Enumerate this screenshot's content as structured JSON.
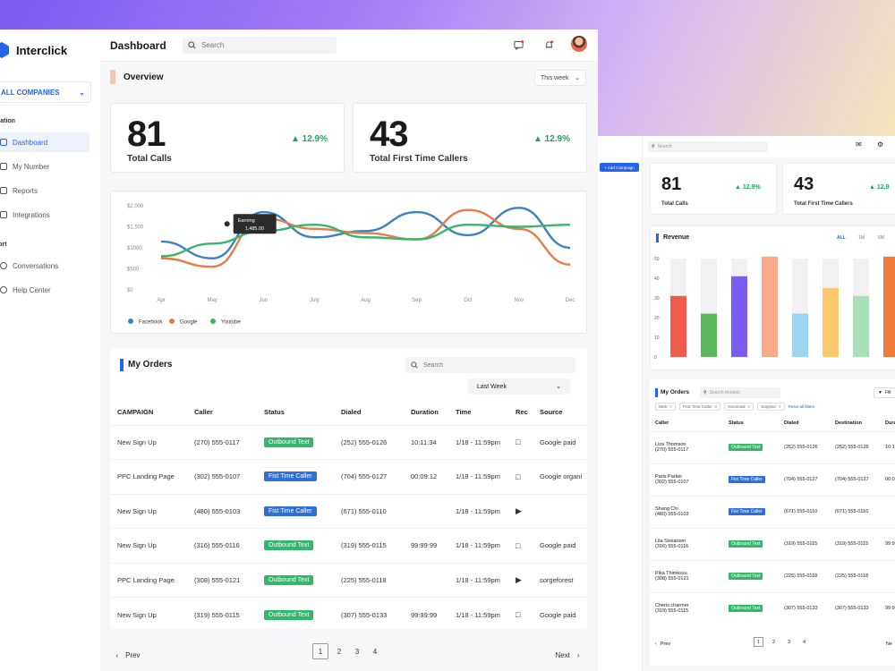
{
  "brand": {
    "name": "Interclick"
  },
  "sidebar": {
    "company_select": "ALL COMPANIES",
    "section_navigation": "igation",
    "section_support": "port",
    "nav_items": [
      {
        "label": "Dashboard",
        "icon": "dashboard-icon",
        "active": true
      },
      {
        "label": "My Number",
        "icon": "phone-icon",
        "active": false
      },
      {
        "label": "Reports",
        "icon": "reports-icon",
        "active": false
      },
      {
        "label": "Integrations",
        "icon": "integrations-icon",
        "active": false
      }
    ],
    "support_items": [
      {
        "label": "Conversations",
        "icon": "chat-icon"
      },
      {
        "label": "Help Center",
        "icon": "help-icon"
      }
    ]
  },
  "header": {
    "title": "Dashboard",
    "search_placeholder": "Search"
  },
  "overview": {
    "title": "Overview",
    "period": "This week",
    "stats": [
      {
        "value": "81",
        "label": "Total Calls",
        "change": "12.9%"
      },
      {
        "value": "43",
        "label": "Total First Time Callers",
        "change": "12.9%"
      }
    ]
  },
  "chart_data": {
    "type": "line",
    "categories": [
      "Apr",
      "May",
      "Jun",
      "July",
      "Aug",
      "Sep",
      "Oct",
      "Nov",
      "Dec"
    ],
    "ytick_labels": [
      "$0",
      "$500",
      "$1000",
      "$1,500",
      "$2,000"
    ],
    "ylim": [
      0,
      2000
    ],
    "series": [
      {
        "name": "Facebook",
        "color": "#3b82c4",
        "values": [
          1150,
          750,
          1850,
          1250,
          1400,
          1850,
          1300,
          1950,
          1000
        ]
      },
      {
        "name": "Google",
        "color": "#e57c4a",
        "values": [
          750,
          550,
          1700,
          1450,
          1350,
          1200,
          1900,
          1450,
          600
        ]
      },
      {
        "name": "Youtube",
        "color": "#3db36b",
        "values": [
          800,
          1100,
          1400,
          1550,
          1250,
          1200,
          1550,
          1500,
          1550
        ]
      }
    ],
    "tooltip": {
      "label": "Earning",
      "value": "1,485.00"
    }
  },
  "orders": {
    "title": "My Orders",
    "search_placeholder": "Search",
    "filter": "Last Week",
    "columns": [
      "CAMPAIGN",
      "Caller",
      "Status",
      "Dialed",
      "Duration",
      "Time",
      "Rec",
      "Source"
    ],
    "rows": [
      {
        "campaign": "New Sign Up",
        "caller": "(270) 555-0117",
        "status": "Outbound Text",
        "status_color": "green",
        "dialed": "(252) 555-0126",
        "duration": "10:11:34",
        "time": "1/18 - 11:59pm",
        "rec": "comment",
        "source": "Google paid"
      },
      {
        "campaign": "PPC Landing Page",
        "caller": "(302) 555-0107",
        "status": "Fist Time Caller",
        "status_color": "blue",
        "dialed": "(704) 555-0127",
        "duration": "00:09:12",
        "time": "1/18 - 11:59pm",
        "rec": "comment",
        "source": "Google organi"
      },
      {
        "campaign": "New Sign Up",
        "caller": "(480) 555-0103",
        "status": "Fist Time Caller",
        "status_color": "blue",
        "dialed": "(671) 555-0110",
        "duration": "",
        "time": "1/18 - 11:59pm",
        "rec": "play",
        "source": ""
      },
      {
        "campaign": "New Sign Up",
        "caller": "(316) 555-0116",
        "status": "Outbound Text",
        "status_color": "green",
        "dialed": "(319) 555-0115",
        "duration": "99:99:99",
        "time": "1/18 - 11:59pm",
        "rec": "comment",
        "source": "Google paid"
      },
      {
        "campaign": "PPC Landing Page",
        "caller": "(308) 555-0121",
        "status": "Outbound Text",
        "status_color": "green",
        "dialed": "(225) 555-0118",
        "duration": "",
        "time": "1/18 - 11:59pm",
        "rec": "play",
        "source": "sorgeforest"
      },
      {
        "campaign": "New Sign Up",
        "caller": "(319) 555-0115",
        "status": "Outbound Text",
        "status_color": "green",
        "dialed": "(307) 555-0133",
        "duration": "99:99:99",
        "time": "1/18 - 11:59pm",
        "rec": "comment",
        "source": "Google paid"
      }
    ]
  },
  "pagination": {
    "prev": "Prev",
    "next": "Next",
    "pages": [
      "1",
      "2",
      "3",
      "4"
    ],
    "current": "1"
  },
  "preview": {
    "add_campaign": "+ Add Campaign",
    "search_placeholder": "Search",
    "stats": [
      {
        "value": "81",
        "label": "Total Calls",
        "change": "12.9%"
      },
      {
        "value": "43",
        "label": "Total First Time Callers",
        "change": "12.9"
      }
    ],
    "revenue": {
      "title": "Revenue",
      "tabs": [
        "ALL",
        "1M",
        "6M"
      ],
      "y_ticks": [
        "0",
        "10",
        "20",
        "30",
        "40",
        "50"
      ],
      "bars": [
        {
          "value": 31,
          "color": "#f05a4a"
        },
        {
          "value": 22,
          "color": "#5cb85c"
        },
        {
          "value": 41,
          "color": "#7b5cf0"
        },
        {
          "value": 51,
          "color": "#f8a98a"
        },
        {
          "value": 22,
          "color": "#9ad5f2"
        },
        {
          "value": 35,
          "color": "#fbc96b"
        },
        {
          "value": 31,
          "color": "#a5e0b8"
        },
        {
          "value": 51,
          "color": "#f07a3a"
        }
      ]
    },
    "orders": {
      "title": "My Orders",
      "search_placeholder": "Search product",
      "filter_label": "Filt",
      "chips": [
        "Web",
        "First Time Caller",
        "Voicemail",
        "Surprise"
      ],
      "clear_link": "Reset all filters",
      "columns": [
        "Caller",
        "Status",
        "Dialed",
        "Destination",
        "Dura"
      ],
      "rows": [
        {
          "name": "Liza Thomson",
          "phone": "(270) 555-0117",
          "status": "Outbound Text",
          "color": "green",
          "dialed": "(252) 555-0126",
          "dest": "(252) 555-0126",
          "dur": "10:1"
        },
        {
          "name": "Paris Parker",
          "phone": "(302) 555-0107",
          "status": "Fist Time Caller",
          "color": "blue",
          "dialed": "(704) 555-0127",
          "dest": "(704) 555-0127",
          "dur": "00:0"
        },
        {
          "name": "Shang Chi",
          "phone": "(480) 555-0103",
          "status": "Fist Time Caller",
          "color": "blue",
          "dialed": "(671) 555-0110",
          "dest": "(671) 555-0110",
          "dur": ""
        },
        {
          "name": "Lila Sissarson",
          "phone": "(316) 555-0116",
          "status": "Outbound Text",
          "color": "green",
          "dialed": "(319) 555-0115",
          "dest": "(319) 555-0115",
          "dur": "99:9"
        },
        {
          "name": "Pika Thimkssu",
          "phone": "(308) 555-0121",
          "status": "Outbound Text",
          "color": "green",
          "dialed": "(225) 555-0118",
          "dest": "(225) 555-0118",
          "dur": ""
        },
        {
          "name": "Cheris charmer",
          "phone": "(319) 555-0115",
          "status": "Outbound Text",
          "color": "green",
          "dialed": "(307) 555-0133",
          "dest": "(307) 555-0133",
          "dur": "99:9"
        }
      ],
      "prev": "Prev",
      "next": "Ne",
      "pages": [
        "1",
        "2",
        "3",
        "4"
      ]
    }
  },
  "colors": {
    "accent": "#2563eb",
    "success": "#21a35b",
    "badge_green": "#31b86a",
    "badge_blue": "#2f6fd6"
  }
}
